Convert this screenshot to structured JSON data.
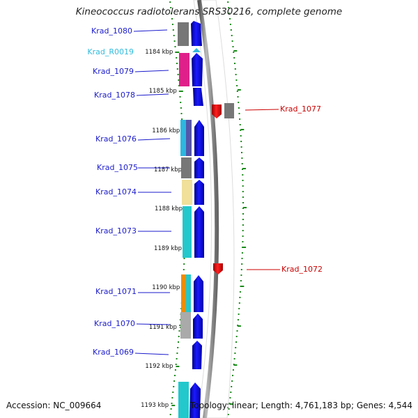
{
  "title": "Kineococcus radiotolerans SRS30216, complete genome",
  "footer": {
    "accession": "Accession: NC_009664",
    "summary": "Topology: linear; Length: 4,761,183 bp; Genes: 4,544"
  },
  "ruler_ticks": [
    "1184 kbp",
    "1185 kbp",
    "1186 kbp",
    "1187 kbp",
    "1188 kbp",
    "1189 kbp",
    "1190 kbp",
    "1191 kbp",
    "1192 kbp",
    "1193 kbp"
  ],
  "left_genes": [
    {
      "label": "Krad_1080",
      "color": "#1a1acc",
      "box_color": "#777777"
    },
    {
      "label": "Krad_R0019",
      "color": "#33bbdd",
      "box_color": "#33bbdd"
    },
    {
      "label": "Krad_1079",
      "color": "#1a1acc",
      "box_color": "#e0208a"
    },
    {
      "label": "Krad_1078",
      "color": "#1a1acc",
      "box_color": ""
    },
    {
      "label": "Krad_1076",
      "color": "#1a1acc",
      "box_color": "#2bb8e0"
    },
    {
      "label": "Krad_1075",
      "color": "#1a1acc",
      "box_color": "#777777"
    },
    {
      "label": "Krad_1074",
      "color": "#1a1acc",
      "box_color": "#f0e09a"
    },
    {
      "label": "Krad_1073",
      "color": "#1a1acc",
      "box_color": "#22c8cc"
    },
    {
      "label": "Krad_1071",
      "color": "#1a1acc",
      "box_color": "#f08c00"
    },
    {
      "label": "Krad_1070",
      "color": "#1a1acc",
      "box_color": "#aaaaaa"
    },
    {
      "label": "Krad_1069",
      "color": "#1a1acc",
      "box_color": ""
    }
  ],
  "right_genes": [
    {
      "label": "Krad_1077",
      "color": "#cc0000",
      "box_color": "#777777"
    },
    {
      "label": "Krad_1072",
      "color": "#cc0000",
      "box_color": ""
    }
  ],
  "colors": {
    "forward_strand": "#1a1aee",
    "reverse_strand": "#ee0000",
    "backbone": "#888888",
    "ruler_ticks": "#1a8a1a",
    "ruler_label": "#111111"
  }
}
